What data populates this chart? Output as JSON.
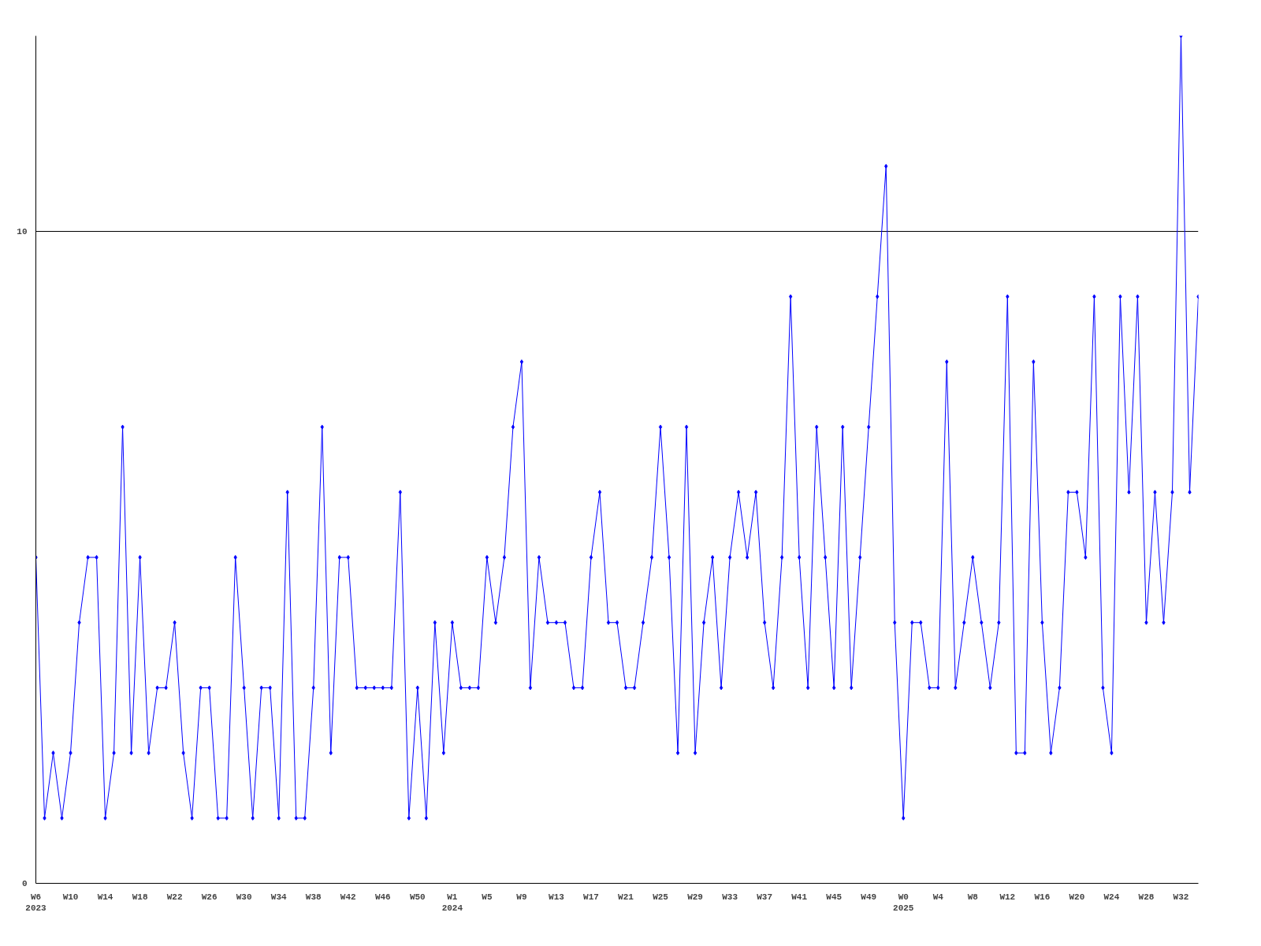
{
  "chart_data": {
    "type": "line",
    "categories": [
      "W6\n2023",
      null,
      null,
      null,
      "W10",
      null,
      null,
      null,
      "W14",
      null,
      null,
      null,
      "W18",
      null,
      null,
      null,
      "W22",
      null,
      null,
      null,
      "W26",
      null,
      null,
      null,
      "W30",
      null,
      null,
      null,
      "W34",
      null,
      null,
      null,
      "W38",
      null,
      null,
      null,
      "W42",
      null,
      null,
      null,
      "W46",
      null,
      null,
      null,
      "W50",
      null,
      null,
      null,
      "W1\n2024",
      null,
      null,
      null,
      "W5",
      null,
      null,
      null,
      "W9",
      null,
      null,
      null,
      "W13",
      null,
      null,
      null,
      "W17",
      null,
      null,
      null,
      "W21",
      null,
      null,
      null,
      "W25",
      null,
      null,
      null,
      "W29",
      null,
      null,
      null,
      "W33",
      null,
      null,
      null,
      "W37",
      null,
      null,
      null,
      "W41",
      null,
      null,
      null,
      "W45",
      null,
      null,
      null,
      "W49",
      null,
      null,
      null,
      "W0\n2025",
      null,
      null,
      null,
      "W4",
      null,
      null,
      null,
      "W8",
      null,
      null,
      null,
      "W12",
      null,
      null,
      null,
      "W16",
      null,
      null,
      null,
      "W20",
      null,
      null,
      null,
      "W24",
      null,
      null,
      null,
      "W28",
      null,
      null,
      null,
      "W32",
      null,
      null
    ],
    "series": [
      {
        "color": "#0000ff",
        "values": [
          5,
          1,
          2,
          1,
          2,
          4,
          5,
          5,
          1,
          2,
          7,
          2,
          5,
          2,
          3,
          3,
          4,
          2,
          1,
          3,
          3,
          1,
          1,
          5,
          3,
          1,
          3,
          3,
          1,
          6,
          1,
          1,
          3,
          7,
          2,
          5,
          5,
          3,
          3,
          3,
          3,
          3,
          6,
          1,
          3,
          1,
          4,
          2,
          4,
          3,
          3,
          3,
          5,
          4,
          5,
          7,
          8,
          3,
          5,
          4,
          4,
          4,
          3,
          3,
          5,
          6,
          4,
          4,
          3,
          3,
          4,
          5,
          7,
          5,
          2,
          7,
          2,
          4,
          5,
          3,
          5,
          6,
          5,
          6,
          4,
          3,
          5,
          9,
          5,
          3,
          7,
          5,
          3,
          7,
          3,
          5,
          7,
          9,
          11,
          4,
          1,
          4,
          4,
          3,
          3,
          8,
          3,
          4,
          5,
          4,
          3,
          4,
          9,
          2,
          2,
          8,
          4,
          2,
          3,
          6,
          6,
          5,
          9,
          3,
          2,
          9,
          6,
          9,
          4,
          6,
          4,
          6,
          13,
          6,
          9
        ]
      }
    ],
    "ylim": [
      0,
      13
    ],
    "yticks": [
      0,
      10
    ],
    "grid": "y",
    "marker": "diamond",
    "line_style": "solid"
  }
}
